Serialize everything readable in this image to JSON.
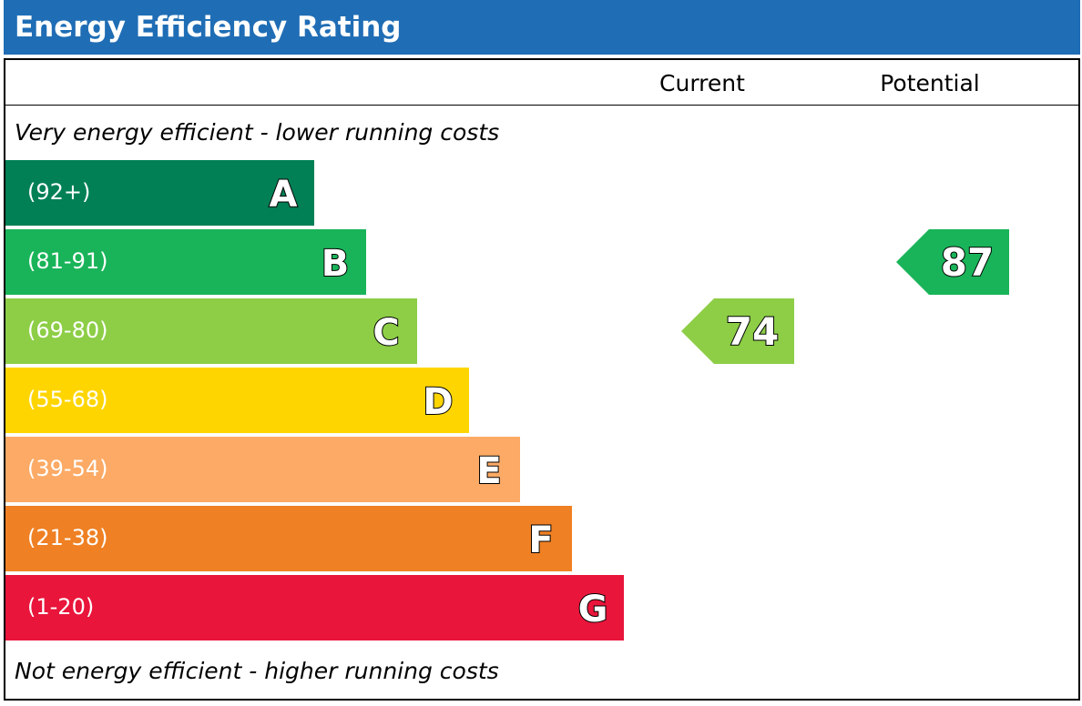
{
  "title": "Energy Efficiency Rating",
  "columns": {
    "current": "Current",
    "potential": "Potential"
  },
  "notes": {
    "top": "Very energy efficient - lower running costs",
    "bottom": "Not energy efficient - higher running costs"
  },
  "colors": {
    "title_bar": "#1f6db5",
    "A": "#008054",
    "B": "#19b459",
    "C": "#8dce46",
    "D": "#ffd500",
    "E": "#fcaa65",
    "F": "#ef8023",
    "G": "#e9153b"
  },
  "chart_data": {
    "type": "bar",
    "categories": [
      "A",
      "B",
      "C",
      "D",
      "E",
      "F",
      "G"
    ],
    "ranges": [
      "(92+)",
      "(81-91)",
      "(69-80)",
      "(55-68)",
      "(39-54)",
      "(21-38)",
      "(1-20)"
    ],
    "title": "Energy Efficiency Rating",
    "current": {
      "value": "74",
      "band": "C"
    },
    "potential": {
      "value": "87",
      "band": "B"
    }
  }
}
